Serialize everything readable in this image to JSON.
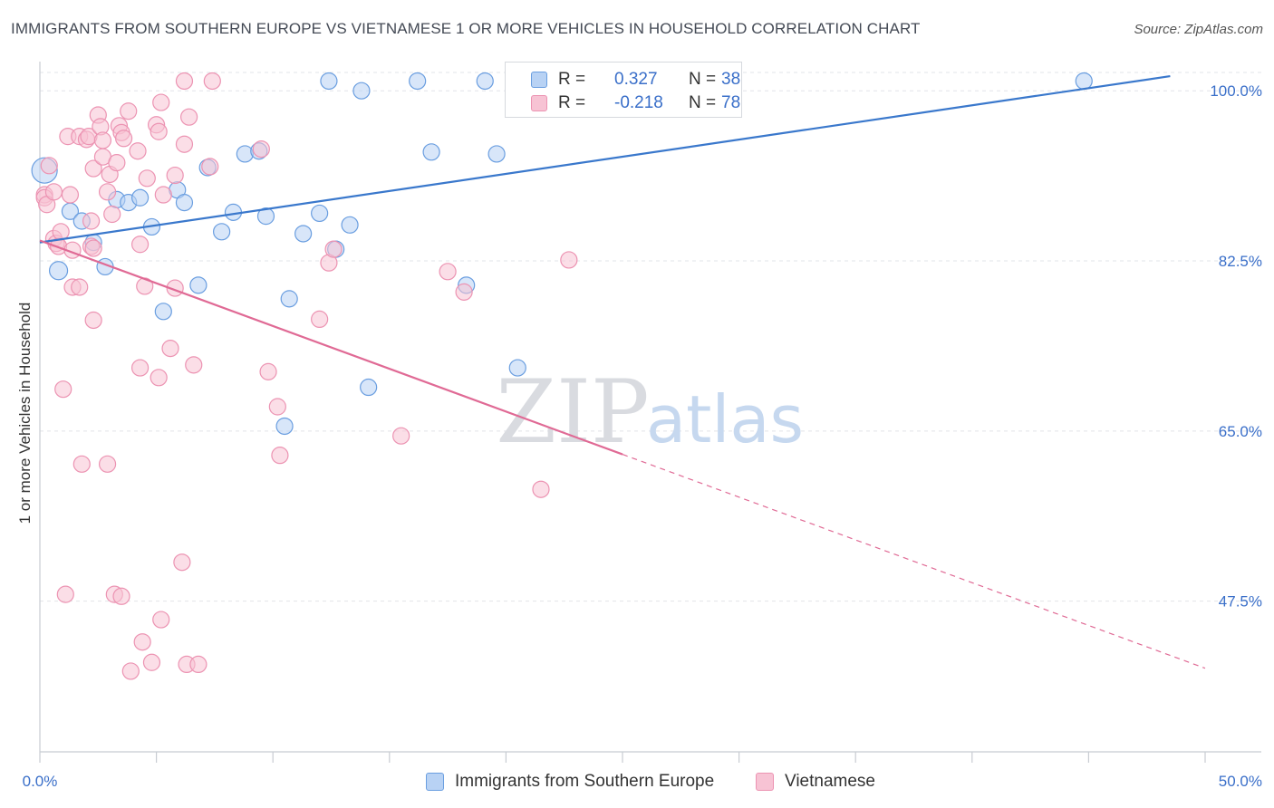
{
  "title": "IMMIGRANTS FROM SOUTHERN EUROPE VS VIETNAMESE 1 OR MORE VEHICLES IN HOUSEHOLD CORRELATION CHART",
  "source": "Source: ZipAtlas.com",
  "watermark": {
    "zip": "ZIP",
    "atlas": "atlas"
  },
  "colors": {
    "blue": "#3a78cc",
    "blue_fill": "#b8d2f4",
    "blue_stroke": "#6a9ee0",
    "pink": "#e06a95",
    "pink_fill": "#f7c3d4",
    "pink_stroke": "#ec93b2",
    "tick_label": "#3a6fc9",
    "grid": "#e2e4e8",
    "axis": "#c8ccd2"
  },
  "legend": {
    "r_label": "R =",
    "n_label": "N =",
    "series": [
      {
        "r": "0.327",
        "n": "38"
      },
      {
        "r": "-0.218",
        "n": "78"
      }
    ]
  },
  "bottom_legend": [
    "Immigrants from Southern Europe",
    "Vietnamese"
  ],
  "chart_data": {
    "type": "scatter",
    "title": "IMMIGRANTS FROM SOUTHERN EUROPE VS VIETNAMESE 1 OR MORE VEHICLES IN HOUSEHOLD CORRELATION CHART",
    "xlabel": "",
    "ylabel": "1 or more Vehicles in Household",
    "xlim": [
      0,
      50
    ],
    "ylim": [
      32,
      103
    ],
    "x_tick_labels": [
      "0.0%",
      "50.0%"
    ],
    "y_ticks": [
      47.5,
      65.0,
      82.5,
      100.0
    ],
    "y_tick_labels": [
      "47.5%",
      "65.0%",
      "82.5%",
      "100.0%"
    ],
    "grid": true,
    "legend_position": "top-center",
    "series": [
      {
        "name": "Immigrants from Southern Europe",
        "r": 0.327,
        "n": 38,
        "trend": {
          "x": [
            0.0,
            48.5
          ],
          "y": [
            84.4,
            101.5
          ]
        },
        "points": [
          [
            0.2,
            91.8,
            14
          ],
          [
            0.8,
            81.5,
            10
          ],
          [
            1.3,
            87.6,
            9
          ],
          [
            1.8,
            86.6,
            9
          ],
          [
            2.3,
            84.4,
            9
          ],
          [
            2.8,
            81.9,
            9
          ],
          [
            3.3,
            88.8,
            9
          ],
          [
            3.8,
            88.5,
            9
          ],
          [
            4.3,
            89.0,
            9
          ],
          [
            4.8,
            86.0,
            9
          ],
          [
            5.3,
            77.3,
            9
          ],
          [
            5.9,
            89.8,
            9
          ],
          [
            6.2,
            88.5,
            9
          ],
          [
            6.8,
            80.0,
            9
          ],
          [
            7.2,
            92.1,
            9
          ],
          [
            7.8,
            85.5,
            9
          ],
          [
            8.3,
            87.5,
            9
          ],
          [
            8.8,
            93.5,
            9
          ],
          [
            9.4,
            93.8,
            9
          ],
          [
            9.7,
            87.1,
            9
          ],
          [
            10.7,
            78.6,
            9
          ],
          [
            10.5,
            65.5,
            9
          ],
          [
            11.3,
            85.3,
            9
          ],
          [
            12.0,
            87.4,
            9
          ],
          [
            12.4,
            101.0,
            9
          ],
          [
            12.7,
            83.7,
            9
          ],
          [
            13.3,
            86.2,
            9
          ],
          [
            13.8,
            100.0,
            9
          ],
          [
            14.1,
            69.5,
            9
          ],
          [
            16.2,
            101.0,
            9
          ],
          [
            16.8,
            93.7,
            9
          ],
          [
            18.3,
            80.0,
            9
          ],
          [
            19.1,
            101.0,
            9
          ],
          [
            19.6,
            93.5,
            9
          ],
          [
            20.5,
            71.5,
            9
          ],
          [
            25.2,
            100.5,
            9
          ],
          [
            25.6,
            99.8,
            9
          ],
          [
            44.8,
            101.0,
            9
          ]
        ]
      },
      {
        "name": "Vietnamese",
        "r": -0.218,
        "n": 78,
        "trend": {
          "x": [
            0.0,
            25.0
          ],
          "y": [
            84.6,
            62.6
          ]
        },
        "trend_extension": {
          "x": [
            25.0,
            50.0
          ],
          "y": [
            62.6,
            40.6
          ]
        },
        "points": [
          [
            0.2,
            89.3,
            9
          ],
          [
            0.2,
            89.0,
            9
          ],
          [
            0.3,
            88.3,
            9
          ],
          [
            0.4,
            92.3,
            9
          ],
          [
            0.6,
            89.6,
            9
          ],
          [
            0.6,
            84.8,
            9
          ],
          [
            0.7,
            84.3,
            9
          ],
          [
            0.8,
            84.0,
            9
          ],
          [
            0.9,
            85.5,
            9
          ],
          [
            1.0,
            69.3,
            9
          ],
          [
            1.1,
            48.2,
            9
          ],
          [
            1.2,
            95.3,
            9
          ],
          [
            1.3,
            89.3,
            9
          ],
          [
            1.4,
            83.6,
            9
          ],
          [
            1.4,
            79.8,
            9
          ],
          [
            1.7,
            95.3,
            9
          ],
          [
            1.7,
            79.8,
            9
          ],
          [
            1.8,
            61.6,
            9
          ],
          [
            2.0,
            95.0,
            9
          ],
          [
            2.1,
            95.3,
            9
          ],
          [
            2.2,
            84.0,
            9
          ],
          [
            2.2,
            86.6,
            9
          ],
          [
            2.3,
            83.8,
            9
          ],
          [
            2.3,
            76.4,
            9
          ],
          [
            2.3,
            92.0,
            9
          ],
          [
            2.5,
            97.5,
            9
          ],
          [
            2.6,
            96.3,
            9
          ],
          [
            2.7,
            93.2,
            9
          ],
          [
            2.7,
            94.9,
            9
          ],
          [
            2.9,
            61.6,
            9
          ],
          [
            2.9,
            89.6,
            9
          ],
          [
            3.0,
            91.4,
            9
          ],
          [
            3.1,
            87.3,
            9
          ],
          [
            3.2,
            48.2,
            9
          ],
          [
            3.3,
            92.6,
            9
          ],
          [
            3.4,
            96.4,
            9
          ],
          [
            3.5,
            48.0,
            9
          ],
          [
            3.5,
            95.7,
            9
          ],
          [
            3.6,
            95.1,
            9
          ],
          [
            3.8,
            97.9,
            9
          ],
          [
            3.9,
            40.3,
            9
          ],
          [
            4.2,
            93.8,
            9
          ],
          [
            4.3,
            71.5,
            9
          ],
          [
            4.3,
            84.2,
            9
          ],
          [
            4.4,
            43.3,
            9
          ],
          [
            4.5,
            79.9,
            9
          ],
          [
            4.6,
            91.0,
            9
          ],
          [
            4.8,
            41.2,
            9
          ],
          [
            5.0,
            96.5,
            9
          ],
          [
            5.1,
            95.8,
            9
          ],
          [
            5.1,
            70.5,
            9
          ],
          [
            5.2,
            45.6,
            9
          ],
          [
            5.2,
            98.8,
            9
          ],
          [
            5.3,
            89.3,
            9
          ],
          [
            5.6,
            73.5,
            9
          ],
          [
            5.8,
            79.7,
            9
          ],
          [
            5.8,
            91.3,
            9
          ],
          [
            6.1,
            51.5,
            9
          ],
          [
            6.2,
            94.5,
            9
          ],
          [
            6.2,
            101.0,
            9
          ],
          [
            6.3,
            41.0,
            9
          ],
          [
            6.4,
            97.3,
            9
          ],
          [
            6.6,
            71.8,
            9
          ],
          [
            6.8,
            41.0,
            9
          ],
          [
            7.3,
            92.2,
            9
          ],
          [
            7.4,
            101.0,
            9
          ],
          [
            9.5,
            94.0,
            9
          ],
          [
            9.8,
            71.1,
            9
          ],
          [
            10.2,
            67.5,
            9
          ],
          [
            10.3,
            62.5,
            9
          ],
          [
            12.0,
            76.5,
            9
          ],
          [
            12.4,
            82.3,
            9
          ],
          [
            12.6,
            83.7,
            9
          ],
          [
            15.5,
            64.5,
            9
          ],
          [
            17.5,
            81.4,
            9
          ],
          [
            18.2,
            79.3,
            9
          ],
          [
            21.5,
            59.0,
            9
          ],
          [
            22.7,
            82.6,
            9
          ]
        ]
      }
    ]
  }
}
